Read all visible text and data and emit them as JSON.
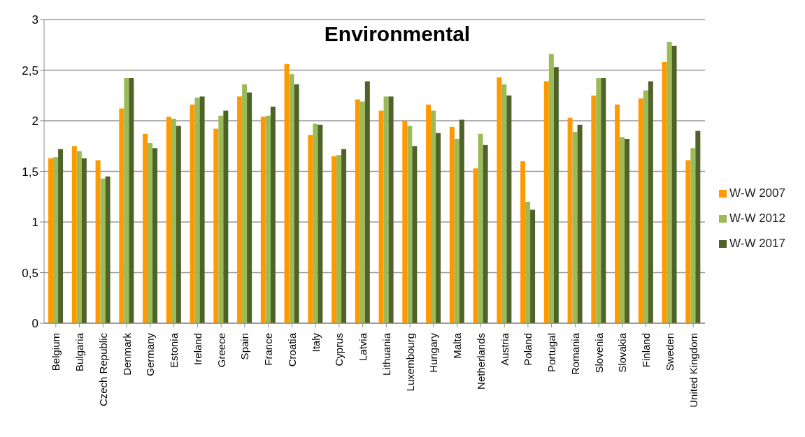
{
  "chart_data": {
    "type": "bar",
    "title": "Environmental",
    "categories": [
      "Belgium",
      "Bulgaria",
      "Czech Republic",
      "Denmark",
      "Germany",
      "Estonia",
      "Ireland",
      "Greece",
      "Spain",
      "France",
      "Croatia",
      "Italy",
      "Cyprus",
      "Latvia",
      "Lithuania",
      "Luxembourg",
      "Hungary",
      "Malta",
      "Netherlands",
      "Austria",
      "Poland",
      "Portugal",
      "Romania",
      "Slovenia",
      "Slovakia",
      "Finland",
      "Sweden",
      "United Kingdom"
    ],
    "series": [
      {
        "name": "W-W 2007",
        "color": "#ff9900",
        "values": [
          1.63,
          1.75,
          1.61,
          2.12,
          1.87,
          2.04,
          2.16,
          1.92,
          2.24,
          2.04,
          2.56,
          1.86,
          1.65,
          2.21,
          2.1,
          2.0,
          2.16,
          1.94,
          1.53,
          2.43,
          1.6,
          2.39,
          2.03,
          2.25,
          2.16,
          2.22,
          2.58,
          1.61
        ]
      },
      {
        "name": "W-W 2012",
        "color": "#9bbb59",
        "values": [
          1.64,
          1.7,
          1.43,
          2.42,
          1.78,
          2.02,
          2.23,
          2.05,
          2.36,
          2.05,
          2.46,
          1.97,
          1.66,
          2.19,
          2.24,
          1.95,
          2.1,
          1.82,
          1.87,
          2.36,
          1.2,
          2.66,
          1.89,
          2.42,
          1.84,
          2.3,
          2.78,
          1.73
        ]
      },
      {
        "name": "W-W 2017",
        "color": "#4f6228",
        "values": [
          1.72,
          1.63,
          1.45,
          2.42,
          1.73,
          1.95,
          2.24,
          2.1,
          2.28,
          2.14,
          2.36,
          1.96,
          1.72,
          2.39,
          2.24,
          1.75,
          1.88,
          2.01,
          1.76,
          2.25,
          1.12,
          2.53,
          1.96,
          2.42,
          1.82,
          2.39,
          2.74,
          1.9
        ]
      }
    ],
    "ylim": [
      0,
      3
    ],
    "yticks": [
      0,
      {
        "value": 0.5,
        "label": "0,5"
      },
      1,
      {
        "value": 1.5,
        "label": "1,5"
      },
      2,
      {
        "value": 2.5,
        "label": "2,5"
      },
      3
    ],
    "grid": "y",
    "legend": "right"
  }
}
